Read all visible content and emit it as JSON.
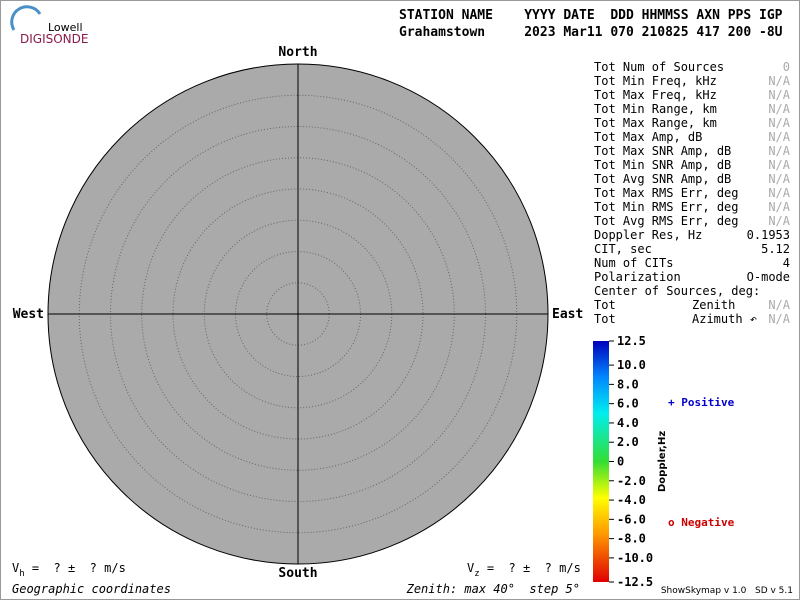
{
  "logo": {
    "line1": "Lowell",
    "line2": "DIGISONDE"
  },
  "header": {
    "labels": "STATION NAME    YYYY DATE  DDD HHMMSS AXN PPS IGP",
    "values": "Grahamstown     2023 Mar11 070 210825 417 200 -8U"
  },
  "compass": {
    "north": "North",
    "south": "South",
    "east": "East",
    "west": "West"
  },
  "stats": [
    {
      "label": "Tot Num of Sources",
      "value": "0",
      "na": true
    },
    {
      "label": "Tot Min Freq, kHz",
      "value": "N/A",
      "na": true
    },
    {
      "label": "Tot Max Freq, kHz",
      "value": "N/A",
      "na": true
    },
    {
      "label": "Tot Min Range, km",
      "value": "N/A",
      "na": true
    },
    {
      "label": "Tot Max Range, km",
      "value": "N/A",
      "na": true
    },
    {
      "label": "Tot Max Amp, dB",
      "value": "N/A",
      "na": true
    },
    {
      "label": "Tot Max SNR Amp, dB",
      "value": "N/A",
      "na": true
    },
    {
      "label": "Tot Min SNR Amp, dB",
      "value": "N/A",
      "na": true
    },
    {
      "label": "Tot Avg SNR Amp, dB",
      "value": "N/A",
      "na": true
    },
    {
      "label": "Tot Max RMS Err, deg",
      "value": "N/A",
      "na": true
    },
    {
      "label": "Tot Min RMS Err, deg",
      "value": "N/A",
      "na": true
    },
    {
      "label": "Tot Avg RMS Err, deg",
      "value": "N/A",
      "na": true
    },
    {
      "label": "Doppler Res, Hz",
      "value": "0.1953",
      "na": false
    },
    {
      "label": "CIT, sec",
      "value": "5.12",
      "na": false
    },
    {
      "label": "Num of CITs",
      "value": "4",
      "na": false
    },
    {
      "label": "Polarization",
      "value": "O-mode",
      "na": false
    }
  ],
  "center": {
    "title": "Center of Sources, deg:",
    "rows": [
      {
        "label": "Tot",
        "name": "Zenith",
        "value": "N/A"
      },
      {
        "label": "Tot",
        "name": "Azimuth ↶",
        "value": "N/A"
      }
    ]
  },
  "colorbar": {
    "title": "Doppler,Hz",
    "ticks": [
      {
        "value": 12.5,
        "label": "12.5"
      },
      {
        "value": 10,
        "label": "10.0"
      },
      {
        "value": 8,
        "label": "8.0"
      },
      {
        "value": 6,
        "label": "6.0"
      },
      {
        "value": 4,
        "label": "4.0"
      },
      {
        "value": 2,
        "label": "2.0"
      },
      0,
      {
        "value": -2,
        "label": "-2.0"
      },
      {
        "value": -4,
        "label": "-4.0"
      },
      {
        "value": -6,
        "label": "-6.0"
      },
      {
        "value": -8,
        "label": "-8.0"
      },
      {
        "value": -10,
        "label": "-10.0"
      },
      {
        "value": -12.5,
        "label": "-12.5"
      }
    ]
  },
  "legend": {
    "positive": "+ Positive",
    "negative": "o Negative"
  },
  "footer": {
    "vh": {
      "symbol": "V",
      "sub": "h",
      "text": " =  ? ±  ? m/s"
    },
    "vz": {
      "symbol": "V",
      "sub": "z",
      "text": " =  ? ±  ? m/s"
    },
    "coords": "Geographic coordinates",
    "zenith": "Zenith: max 40°  step 5°",
    "version": "ShowSkymap v 1.0   SD v 5.1"
  }
}
